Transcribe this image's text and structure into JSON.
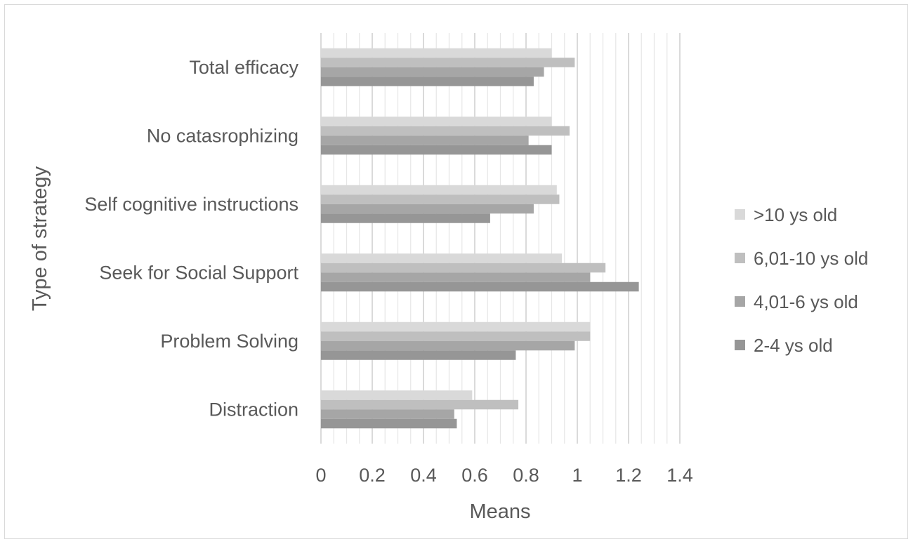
{
  "chart_data": {
    "type": "bar",
    "orientation": "horizontal",
    "title": "",
    "xlabel": "Means",
    "ylabel": "Type of strategy",
    "xlim": [
      0,
      1.4
    ],
    "xticks": [
      "0",
      "0.2",
      "0.4",
      "0.6",
      "0.8",
      "1",
      "1.2",
      "1.4"
    ],
    "grid": "vertical",
    "legend_position": "right",
    "categories": [
      "Total efficacy",
      "No catasrophizing",
      "Self cognitive instructions",
      "Seek for Social Support",
      "Problem Solving",
      "Distraction"
    ],
    "series": [
      {
        "name": ">10 ys old",
        "color": "#d9d9d9",
        "values": [
          0.9,
          0.9,
          0.92,
          0.94,
          1.05,
          0.59
        ]
      },
      {
        "name": "6,01-10 ys old",
        "color": "#bfbfbf",
        "values": [
          0.99,
          0.97,
          0.93,
          1.11,
          1.05,
          0.77
        ]
      },
      {
        "name": "4,01-6 ys old",
        "color": "#a6a6a6",
        "values": [
          0.87,
          0.81,
          0.83,
          1.05,
          0.99,
          0.52
        ]
      },
      {
        "name": "2-4 ys old",
        "color": "#969696",
        "values": [
          0.83,
          0.9,
          0.66,
          1.24,
          0.76,
          0.53
        ]
      }
    ]
  }
}
